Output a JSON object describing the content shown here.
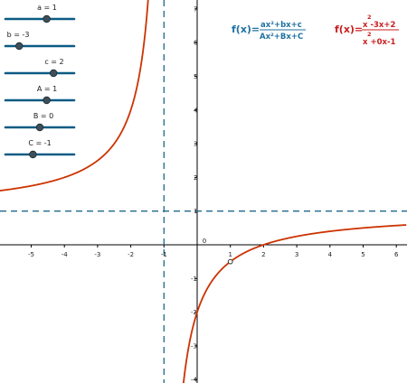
{
  "sliders": [
    {
      "label": "a = 1",
      "value": 1,
      "min": -5,
      "max": 5
    },
    {
      "label": "b = -3",
      "value": -3,
      "min": -5,
      "max": 5
    },
    {
      "label": "c = 2",
      "value": 2,
      "min": -5,
      "max": 5
    },
    {
      "label": "A = 1",
      "value": 1,
      "min": -5,
      "max": 5
    },
    {
      "label": "B = 0",
      "value": 0,
      "min": -5,
      "max": 5
    },
    {
      "label": "C = -1",
      "value": -1,
      "min": -5,
      "max": 5
    }
  ],
  "formula_general": {
    "lhs": "f(x)=",
    "numerator": "ax²+bx+c",
    "denominator": "Ax²+Bx+C"
  },
  "formula_specific": {
    "lhs": "f(x)=",
    "num_sup": "2",
    "numerator": "x -3x+2",
    "den_sup": "2",
    "denominator": "x +0x-1"
  },
  "colors": {
    "curve": "#cc3300",
    "asymptote": "#1f6a8c",
    "slider": "#0c5b84",
    "formula_general": "#1f72a0",
    "formula_specific": "#c81e1e",
    "axis": "#000000"
  },
  "chart_data": {
    "type": "line",
    "series": [
      {
        "values": [
          [
            -6.3,
            1.65
          ],
          [
            -5,
            1.75
          ],
          [
            -4,
            1.87
          ],
          [
            -3,
            2.5
          ],
          [
            -2,
            4.0
          ],
          [
            -1.5,
            7.0
          ],
          [
            -1.2,
            13.4
          ],
          [
            -0.5,
            -1.67
          ],
          [
            0,
            -2.0
          ],
          [
            0.5,
            -1.0
          ],
          [
            1.5,
            0.2
          ],
          [
            2,
            0.33
          ],
          [
            3,
            0.5
          ],
          [
            4,
            0.6
          ],
          [
            5,
            0.67
          ],
          [
            6.2,
            0.72
          ]
        ]
      }
    ],
    "vertical_asymptote": -1,
    "horizontal_asymptote": 1,
    "hole": [
      1,
      -0.5
    ],
    "xlim": [
      -6.3,
      6.3
    ],
    "ylim": [
      -4.2,
      7.3
    ],
    "x_ticks": [
      -5,
      -4,
      -3,
      -2,
      -1,
      1,
      2,
      3,
      4,
      5,
      6
    ],
    "y_ticks": [
      -4,
      -3,
      -2,
      -1,
      1,
      2,
      3,
      4,
      5,
      6,
      7
    ],
    "x_tick_labels": [
      "-5",
      "-4",
      "-3",
      "-2",
      "-1",
      "1",
      "2",
      "3",
      "4",
      "5",
      "6"
    ],
    "y_tick_labels": [
      "-4",
      "-3",
      "-2",
      "-1",
      "1",
      "2",
      "3",
      "4",
      "5",
      "6",
      "7"
    ],
    "origin_label": "0",
    "grid": false
  }
}
